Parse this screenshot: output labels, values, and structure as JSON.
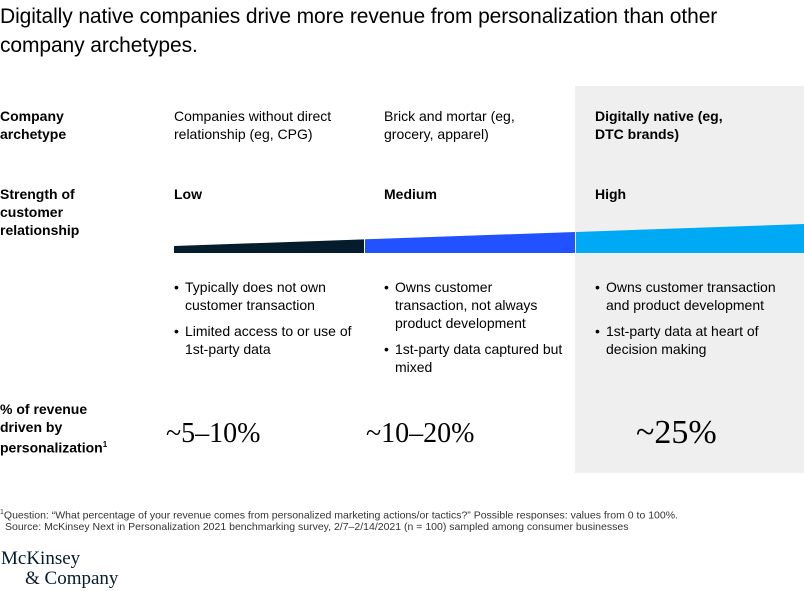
{
  "title": "Digitally native companies drive more revenue from personalization than other company archetypes.",
  "colors": {
    "low": "#051c2c",
    "medium": "#2251ff",
    "high": "#00a9f4",
    "highlight_bg": "#efefef"
  },
  "chart_data": {
    "type": "table",
    "row_headers": {
      "archetype": "Company archetype",
      "strength": "Strength of customer relationship",
      "revenue": "% of revenue driven by personalization",
      "revenue_footnote_marker": "1"
    },
    "columns": [
      {
        "archetype": "Companies without direct relationship (eg, CPG)",
        "strength": "Low",
        "bullets": [
          "Typically does not own customer transaction",
          "Limited access to or use of 1st-party data"
        ],
        "revenue": "~5–10%",
        "highlighted": false
      },
      {
        "archetype": "Brick and mortar (eg, grocery, apparel)",
        "strength": "Medium",
        "bullets": [
          "Owns customer transaction, not always product development",
          "1st-party data captured but mixed"
        ],
        "revenue": "~10–20%",
        "highlighted": false
      },
      {
        "archetype": "Digitally native (eg, DTC brands)",
        "strength": "High",
        "bullets": [
          "Owns customer transaction and product development",
          "1st-party data at heart of decision making"
        ],
        "revenue": "~25%",
        "highlighted": true
      }
    ]
  },
  "footnotes": {
    "marker": "1",
    "question": "Question: “What percentage of your revenue comes from personalized marketing actions/or tactics?” Possible responses: values from 0 to 100%.",
    "source": "Source: McKinsey Next in Personalization 2021 benchmarking survey, 2/7–2/14/2021 (n = 100) sampled among consumer businesses"
  },
  "logo": {
    "line1": "McKinsey",
    "line2": "& Company"
  }
}
